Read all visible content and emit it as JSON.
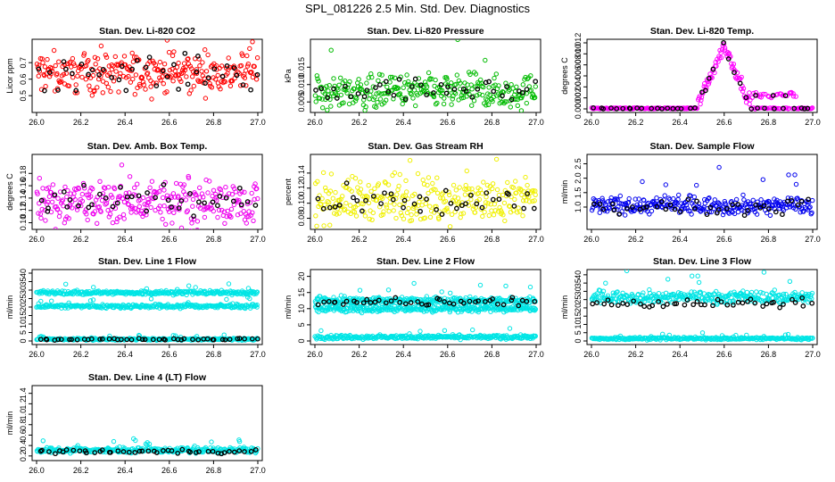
{
  "page": {
    "title": "SPL_081226  2.5 Min. Std. Dev. Diagnostics"
  },
  "chart_data": [
    {
      "type": "scatter",
      "title": "Stan. Dev. Li-820 CO2",
      "ylabel": "Licor ppm",
      "xlim": [
        26.0,
        27.0
      ],
      "ylim": [
        0.42,
        0.82
      ],
      "xticks": [
        "26.0",
        "26.2",
        "26.4",
        "26.6",
        "26.8",
        "27.0"
      ],
      "yticks": [
        "0.5",
        "0.6",
        "0.7"
      ],
      "color": "#ff0000",
      "series": [
        {
          "name": "main",
          "color": "#ff0000",
          "y_mean": 0.64,
          "y_spread": 0.06,
          "n": 300
        },
        {
          "name": "highlight",
          "color": "#000000",
          "y_mean": 0.64,
          "y_spread": 0.05,
          "n": 40
        }
      ]
    },
    {
      "type": "scatter",
      "title": "Stan. Dev. Li-820 Pressure",
      "ylabel": "kPa",
      "xlim": [
        26.0,
        27.0
      ],
      "ylim": [
        0.003,
        0.022
      ],
      "xticks": [
        "26.0",
        "26.2",
        "26.4",
        "26.6",
        "26.8",
        "27.0"
      ],
      "yticks": [
        "0.005",
        "0.010",
        "0.015"
      ],
      "color": "#00cc00",
      "series": [
        {
          "name": "main",
          "color": "#00bb00",
          "y_mean": 0.008,
          "y_spread": 0.0025,
          "n": 300
        },
        {
          "name": "highlight",
          "color": "#000000",
          "y_mean": 0.0085,
          "y_spread": 0.0015,
          "n": 40
        }
      ]
    },
    {
      "type": "scatter",
      "title": "Stan. Dev. Li-820 Temp.",
      "ylabel": "degrees C",
      "xlim": [
        26.0,
        27.0
      ],
      "ylim": [
        0.0,
        0.012
      ],
      "xticks": [
        "26.0",
        "26.2",
        "26.4",
        "26.6",
        "26.8",
        "27.0"
      ],
      "yticks": [
        "0.000",
        "0.002",
        "0.004",
        "0.006",
        "0.008",
        "0.010",
        "0.012"
      ],
      "color": "#ff00ff",
      "series": [
        {
          "name": "main",
          "color": "#ff00ff",
          "profile": "peak",
          "peak_x": 26.6,
          "peak_y": 0.0115,
          "n": 300
        },
        {
          "name": "highlight",
          "color": "#000000",
          "profile": "peak",
          "peak_x": 26.6,
          "peak_y": 0.0112,
          "n": 40
        }
      ]
    },
    {
      "type": "scatter",
      "title": "Stan. Dev. Amb. Box Temp.",
      "ylabel": "degrees C",
      "xlim": [
        26.0,
        27.0
      ],
      "ylim": [
        0.095,
        0.205
      ],
      "xticks": [
        "26.0",
        "26.2",
        "26.4",
        "26.6",
        "26.8",
        "27.0"
      ],
      "yticks": [
        "0.10",
        "0.12",
        "0.14",
        "0.16",
        "0.18"
      ],
      "color": "#ee00ee",
      "series": [
        {
          "name": "main",
          "color": "#ee00ee",
          "y_mean": 0.135,
          "y_spread": 0.018,
          "n": 300
        },
        {
          "name": "highlight",
          "color": "#000000",
          "y_mean": 0.133,
          "y_spread": 0.012,
          "n": 40
        }
      ]
    },
    {
      "type": "scatter",
      "title": "Stan. Dev. Gas Stream RH",
      "ylabel": "percent",
      "xlim": [
        26.0,
        27.0
      ],
      "ylim": [
        0.07,
        0.16
      ],
      "xticks": [
        "26.0",
        "26.2",
        "26.4",
        "26.6",
        "26.8",
        "27.0"
      ],
      "yticks": [
        "0.08",
        "0.10",
        "0.12",
        "0.14"
      ],
      "color": "#ffff00",
      "series": [
        {
          "name": "main",
          "color": "#f0f000",
          "y_mean": 0.105,
          "y_spread": 0.015,
          "n": 300
        },
        {
          "name": "highlight",
          "color": "#000000",
          "y_mean": 0.1,
          "y_spread": 0.01,
          "n": 40
        }
      ]
    },
    {
      "type": "scatter",
      "title": "Stan. Dev. Sample Flow",
      "ylabel": "ml/min",
      "xlim": [
        26.0,
        27.0
      ],
      "ylim": [
        0.35,
        2.7
      ],
      "xticks": [
        "26.0",
        "26.2",
        "26.4",
        "26.6",
        "26.8",
        "27.0"
      ],
      "yticks": [
        "1.0",
        "1.5",
        "2.0",
        "2.5"
      ],
      "color": "#0000ff",
      "series": [
        {
          "name": "main",
          "color": "#0000ee",
          "y_mean": 1.05,
          "y_spread": 0.15,
          "n": 300
        },
        {
          "name": "highlight",
          "color": "#000000",
          "y_mean": 1.0,
          "y_spread": 0.12,
          "n": 40
        }
      ]
    },
    {
      "type": "scatter",
      "title": "Stan. Dev. Line 1 Flow",
      "ylabel": "ml/min",
      "xlim": [
        26.0,
        27.0
      ],
      "ylim": [
        0,
        40
      ],
      "xticks": [
        "26.0",
        "26.2",
        "26.4",
        "26.6",
        "26.8",
        "27.0"
      ],
      "yticks": [
        "0",
        "5",
        "10",
        "15",
        "20",
        "25",
        "30",
        "35",
        "40"
      ],
      "color": "#00ffff",
      "series": [
        {
          "name": "band-high",
          "color": "#00e5e5",
          "y_mean": 28.5,
          "y_spread": 0.6,
          "n": 300
        },
        {
          "name": "band-mid",
          "color": "#00e5e5",
          "y_mean": 20.5,
          "y_spread": 0.6,
          "n": 300
        },
        {
          "name": "band-low",
          "color": "#00e5e5",
          "y_mean": 1.0,
          "y_spread": 0.3,
          "n": 300
        },
        {
          "name": "highlight",
          "color": "#000000",
          "y_mean": 1.0,
          "y_spread": 0.2,
          "n": 45
        }
      ]
    },
    {
      "type": "scatter",
      "title": "Stan. Dev. Line 2 Flow",
      "ylabel": "ml/min",
      "xlim": [
        26.0,
        27.0
      ],
      "ylim": [
        0,
        21
      ],
      "xticks": [
        "26.0",
        "26.2",
        "26.4",
        "26.6",
        "26.8",
        "27.0"
      ],
      "yticks": [
        "0",
        "5",
        "10",
        "15",
        "20"
      ],
      "color": "#00ffff",
      "series": [
        {
          "name": "band-high",
          "color": "#00e5e5",
          "y_mean": 12.5,
          "y_spread": 0.6,
          "n": 300
        },
        {
          "name": "band-mid",
          "color": "#00e5e5",
          "y_mean": 10.0,
          "y_spread": 0.5,
          "n": 300
        },
        {
          "name": "band-low",
          "color": "#00e5e5",
          "y_mean": 1.2,
          "y_spread": 0.3,
          "n": 300
        },
        {
          "name": "highlight",
          "color": "#000000",
          "y_mean": 12.0,
          "y_spread": 0.6,
          "n": 45
        }
      ]
    },
    {
      "type": "scatter",
      "title": "Stan. Dev. Line 3 Flow",
      "ylabel": "ml/min",
      "xlim": [
        26.0,
        27.0
      ],
      "ylim": [
        0,
        41
      ],
      "xticks": [
        "26.0",
        "26.2",
        "26.4",
        "26.6",
        "26.8",
        "27.0"
      ],
      "yticks": [
        "0",
        "5",
        "10",
        "15",
        "20",
        "25",
        "30",
        "35",
        "40"
      ],
      "color": "#00ffff",
      "series": [
        {
          "name": "band-high",
          "color": "#00e5e5",
          "y_mean": 26.5,
          "y_spread": 1.8,
          "n": 320
        },
        {
          "name": "band-low",
          "color": "#00e5e5",
          "y_mean": 1.5,
          "y_spread": 0.4,
          "n": 300
        },
        {
          "name": "highlight",
          "color": "#000000",
          "y_mean": 23.0,
          "y_spread": 1.5,
          "n": 45
        }
      ]
    },
    {
      "type": "scatter",
      "title": "Stan. Dev. Line 4 (LT) Flow",
      "ylabel": "ml/min",
      "xlim": [
        26.0,
        27.0
      ],
      "ylim": [
        0.18,
        1.48
      ],
      "xticks": [
        "26.0",
        "26.2",
        "26.4",
        "26.6",
        "26.8",
        "27.0"
      ],
      "yticks": [
        "0.2",
        "0.4",
        "0.6",
        "0.8",
        "1.0",
        "1.2",
        "1.4"
      ],
      "color": "#00ffff",
      "series": [
        {
          "name": "main",
          "color": "#00e5e5",
          "y_mean": 0.31,
          "y_spread": 0.025,
          "n": 320
        },
        {
          "name": "highlight",
          "color": "#000000",
          "y_mean": 0.29,
          "y_spread": 0.02,
          "n": 45
        }
      ]
    }
  ]
}
